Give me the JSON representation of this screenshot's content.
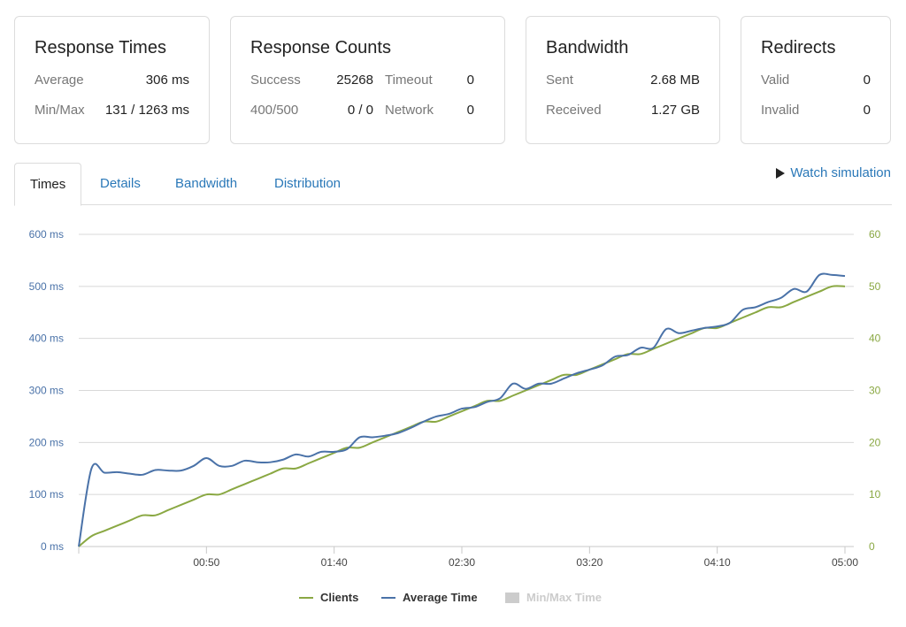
{
  "cards": {
    "response_times": {
      "title": "Response Times",
      "avg_label": "Average",
      "avg_value": "306 ms",
      "minmax_label": "Min/Max",
      "minmax_value": "131 / 1263 ms"
    },
    "response_counts": {
      "title": "Response Counts",
      "success_label": "Success",
      "success_value": "25268",
      "timeout_label": "Timeout",
      "timeout_value": "0",
      "err_label": "400/500",
      "err_value": "0 / 0",
      "network_label": "Network",
      "network_value": "0"
    },
    "bandwidth": {
      "title": "Bandwidth",
      "sent_label": "Sent",
      "sent_value": "2.68 MB",
      "received_label": "Received",
      "received_value": "1.27 GB"
    },
    "redirects": {
      "title": "Redirects",
      "valid_label": "Valid",
      "valid_value": "0",
      "invalid_label": "Invalid",
      "invalid_value": "0"
    }
  },
  "tabs": [
    {
      "label": "Times",
      "active": true
    },
    {
      "label": "Details",
      "active": false
    },
    {
      "label": "Bandwidth",
      "active": false
    },
    {
      "label": "Distribution",
      "active": false
    }
  ],
  "watch_simulation": "Watch simulation",
  "colors": {
    "clients": "#8aa843",
    "average_time": "#4a72a8",
    "minmax": "#cccccc",
    "grid": "#d8d8d8",
    "link": "#2a78b8"
  },
  "chart_data": {
    "type": "line",
    "x_unit": "mm:ss",
    "x_range": [
      "00:00",
      "05:00"
    ],
    "x_tick_labels": [
      "00:50",
      "01:40",
      "02:30",
      "03:20",
      "04:10",
      "05:00"
    ],
    "y_left": {
      "range": [
        0,
        600
      ],
      "tick_labels": [
        "0 ms",
        "100 ms",
        "200 ms",
        "300 ms",
        "400 ms",
        "500 ms",
        "600 ms"
      ]
    },
    "y_right": {
      "range": [
        0,
        60
      ],
      "tick_labels": [
        "0",
        "10",
        "20",
        "30",
        "40",
        "50",
        "60"
      ]
    },
    "grid": true,
    "legend_position": "bottom-center",
    "series": [
      {
        "name": "Clients",
        "axis": "right",
        "x": [
          "00:00",
          "00:05",
          "00:10",
          "00:15",
          "00:20",
          "00:25",
          "00:30",
          "00:35",
          "00:40",
          "00:45",
          "00:50",
          "00:55",
          "01:00",
          "01:05",
          "01:10",
          "01:15",
          "01:20",
          "01:25",
          "01:30",
          "01:35",
          "01:40",
          "01:45",
          "01:50",
          "01:55",
          "02:00",
          "02:05",
          "02:10",
          "02:15",
          "02:20",
          "02:25",
          "02:30",
          "02:35",
          "02:40",
          "02:45",
          "02:50",
          "02:55",
          "03:00",
          "03:05",
          "03:10",
          "03:15",
          "03:20",
          "03:25",
          "03:30",
          "03:35",
          "03:40",
          "03:45",
          "03:50",
          "03:55",
          "04:00",
          "04:05",
          "04:10",
          "04:15",
          "04:20",
          "04:25",
          "04:30",
          "04:35",
          "04:40",
          "04:45",
          "04:50",
          "04:55",
          "05:00"
        ],
        "values": [
          0,
          2,
          3,
          4,
          5,
          6,
          6,
          7,
          8,
          9,
          10,
          10,
          11,
          12,
          13,
          14,
          15,
          15,
          16,
          17,
          18,
          19,
          19,
          20,
          21,
          22,
          23,
          24,
          24,
          25,
          26,
          27,
          28,
          28,
          29,
          30,
          31,
          32,
          33,
          33,
          34,
          35,
          36,
          37,
          37,
          38,
          39,
          40,
          41,
          42,
          42,
          43,
          44,
          45,
          46,
          46,
          47,
          48,
          49,
          50,
          50
        ]
      },
      {
        "name": "Average Time",
        "axis": "left",
        "x": [
          "00:00",
          "00:05",
          "00:10",
          "00:15",
          "00:20",
          "00:25",
          "00:30",
          "00:35",
          "00:40",
          "00:45",
          "00:50",
          "00:55",
          "01:00",
          "01:05",
          "01:10",
          "01:15",
          "01:20",
          "01:25",
          "01:30",
          "01:35",
          "01:40",
          "01:45",
          "01:50",
          "01:55",
          "02:00",
          "02:05",
          "02:10",
          "02:15",
          "02:20",
          "02:25",
          "02:30",
          "02:35",
          "02:40",
          "02:45",
          "02:50",
          "02:55",
          "03:00",
          "03:05",
          "03:10",
          "03:15",
          "03:20",
          "03:25",
          "03:30",
          "03:35",
          "03:40",
          "03:45",
          "03:50",
          "03:55",
          "04:00",
          "04:05",
          "04:10",
          "04:15",
          "04:20",
          "04:25",
          "04:30",
          "04:35",
          "04:40",
          "04:45",
          "04:50",
          "04:55",
          "05:00"
        ],
        "values": [
          0,
          150,
          142,
          143,
          140,
          138,
          147,
          146,
          146,
          155,
          170,
          155,
          155,
          165,
          162,
          162,
          167,
          177,
          173,
          182,
          182,
          187,
          210,
          210,
          213,
          218,
          228,
          240,
          250,
          255,
          265,
          268,
          278,
          285,
          313,
          303,
          313,
          313,
          323,
          333,
          340,
          348,
          365,
          368,
          382,
          382,
          418,
          410,
          415,
          420,
          423,
          430,
          455,
          460,
          470,
          478,
          495,
          490,
          522,
          522,
          520
        ]
      },
      {
        "name": "Min/Max Time",
        "axis": "left",
        "hidden": true,
        "values": []
      }
    ]
  }
}
